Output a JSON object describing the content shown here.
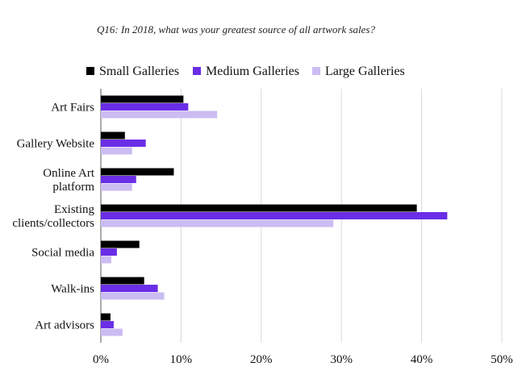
{
  "chart_data": {
    "type": "bar",
    "orientation": "horizontal",
    "title": "Q16: In 2018, what was your greatest source of all artwork sales?",
    "categories": [
      [
        "Art Fairs"
      ],
      [
        "Gallery Website"
      ],
      [
        "Online Art",
        "platform"
      ],
      [
        "Existing",
        "clients/collectors"
      ],
      [
        "Social media"
      ],
      [
        "Walk-ins"
      ],
      [
        "Art advisors"
      ]
    ],
    "series": [
      {
        "name": "Small Galleries",
        "color": "#000000",
        "values": [
          10.3,
          3.0,
          9.1,
          39.4,
          4.8,
          5.4,
          1.2
        ]
      },
      {
        "name": "Medium Galleries",
        "color": "#6a2ee6",
        "values": [
          10.9,
          5.6,
          4.4,
          43.2,
          2.0,
          7.1,
          1.6
        ]
      },
      {
        "name": "Large Galleries",
        "color": "#cbbcf2",
        "values": [
          14.5,
          3.9,
          3.9,
          29.0,
          1.3,
          7.9,
          2.7
        ]
      }
    ],
    "xlim": [
      0,
      50
    ],
    "xticks": [
      "0%",
      "10%",
      "20%",
      "30%",
      "40%",
      "50%"
    ],
    "grid": true,
    "legend_position": "top"
  }
}
